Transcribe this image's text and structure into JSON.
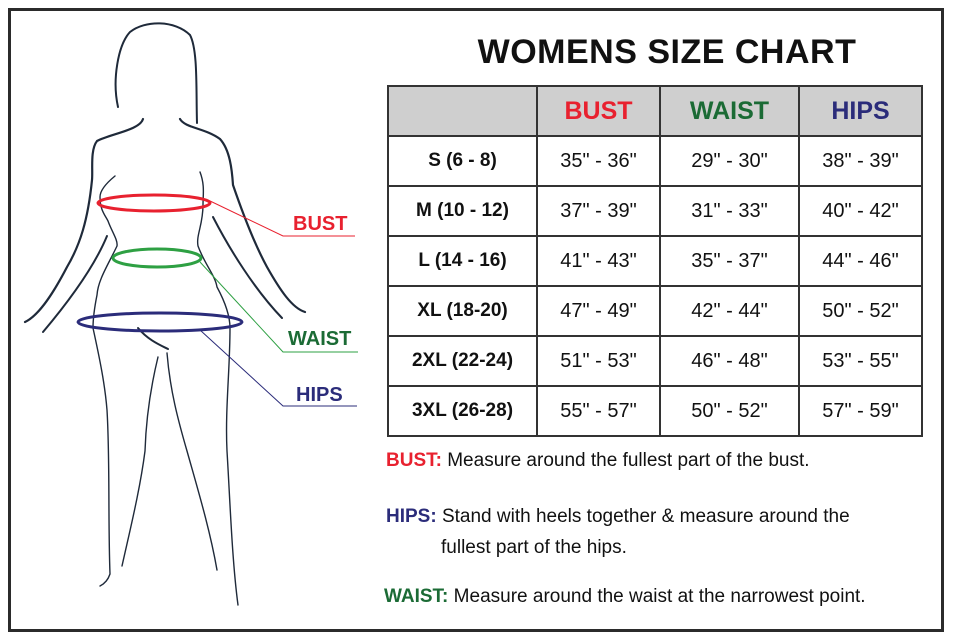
{
  "title": "WOMENS SIZE CHART",
  "colors": {
    "bust": "#e8212f",
    "waist": "#1b6b35",
    "hips": "#2b2c7a",
    "waist_ring": "#2ea043",
    "header_bg": "#cfcfcf",
    "outline": "#1f2a3a"
  },
  "figure": {
    "labels": {
      "bust": "BUST",
      "waist": "WAIST",
      "hips": "HIPS"
    }
  },
  "table": {
    "headers": [
      "",
      "BUST",
      "WAIST",
      "HIPS"
    ],
    "rows": [
      [
        "S (6 - 8)",
        "35\" - 36\"",
        "29\" - 30\"",
        "38\" - 39\""
      ],
      [
        "M (10 - 12)",
        "37\" - 39\"",
        "31\" - 33\"",
        "40\" - 42\""
      ],
      [
        "L (14 - 16)",
        "41\" - 43\"",
        "35\" - 37\"",
        "44\" - 46\""
      ],
      [
        "XL (18-20)",
        "47\" - 49\"",
        "42\" - 44\"",
        "50\" - 52\""
      ],
      [
        "2XL (22-24)",
        "51\" - 53\"",
        "46\" - 48\"",
        "53\" - 55\""
      ],
      [
        "3XL (26-28)",
        "55\" - 57\"",
        "50\" - 52\"",
        "57\" - 59\""
      ]
    ]
  },
  "notes": {
    "bust": {
      "label": "BUST:",
      "text": "Measure around the fullest part of the bust."
    },
    "hips": {
      "label": "HIPS:",
      "text": "Stand with heels together & measure around the",
      "text2": "fullest part of the hips."
    },
    "waist": {
      "label": "WAIST:",
      "text": "Measure around the waist at the narrowest point."
    }
  }
}
